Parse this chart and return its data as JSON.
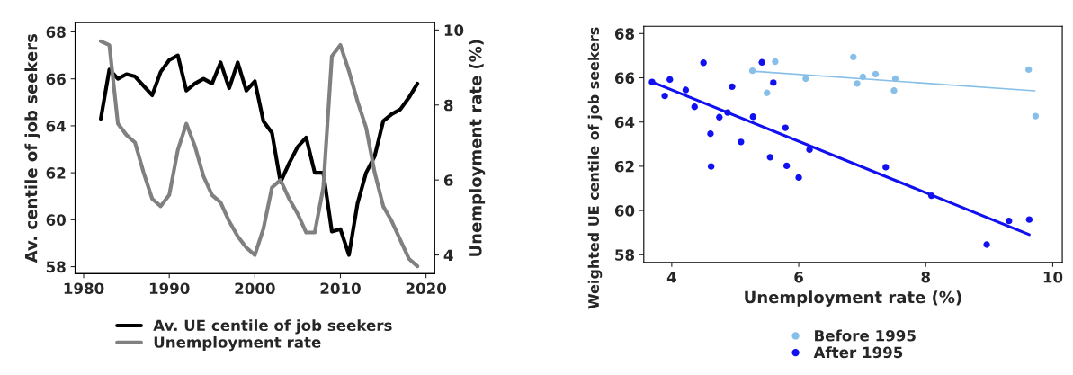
{
  "chart_data": [
    {
      "type": "line",
      "ylabel": "Av. centile of job seekers",
      "y2label": "Unemployment rate (%)",
      "x": [
        1982,
        1983,
        1984,
        1985,
        1986,
        1987,
        1988,
        1989,
        1990,
        1991,
        1992,
        1993,
        1994,
        1995,
        1996,
        1997,
        1998,
        1999,
        2000,
        2001,
        2002,
        2003,
        2004,
        2005,
        2006,
        2007,
        2008,
        2009,
        2010,
        2011,
        2012,
        2013,
        2014,
        2015,
        2016,
        2017,
        2018,
        2019
      ],
      "series": [
        {
          "name": "Av. UE centile of job seekers",
          "color": "#000000",
          "values": [
            64.3,
            66.4,
            66.0,
            66.2,
            66.1,
            65.7,
            65.3,
            66.3,
            66.8,
            67.0,
            65.5,
            65.8,
            66.0,
            65.8,
            66.7,
            65.6,
            66.7,
            65.5,
            65.9,
            64.2,
            63.7,
            61.6,
            62.4,
            63.1,
            63.5,
            62.0,
            62.0,
            59.5,
            59.6,
            58.5,
            60.7,
            62.0,
            62.7,
            64.2,
            64.5,
            64.7,
            65.2,
            65.8
          ]
        },
        {
          "name": "Unemployment rate",
          "color": "#808080",
          "axis": "y2",
          "values": [
            9.7,
            9.6,
            7.5,
            7.2,
            7.0,
            6.2,
            5.5,
            5.3,
            5.6,
            6.8,
            7.5,
            6.9,
            6.1,
            5.6,
            5.4,
            4.9,
            4.5,
            4.2,
            4.0,
            4.7,
            5.8,
            6.0,
            5.5,
            5.1,
            4.6,
            4.6,
            5.8,
            9.3,
            9.6,
            8.9,
            8.1,
            7.4,
            6.2,
            5.3,
            4.9,
            4.4,
            3.9,
            3.7
          ]
        }
      ],
      "xlim": [
        1979,
        2021
      ],
      "xticks": [
        1980,
        1990,
        2000,
        2010,
        2020
      ],
      "ylim": [
        57.7,
        68.4
      ],
      "yticks": [
        58,
        60,
        62,
        64,
        66,
        68
      ],
      "y2lim": [
        3.5,
        10.2
      ],
      "y2ticks": [
        4,
        6,
        8,
        10
      ],
      "grid": false,
      "legend": "bottom"
    },
    {
      "type": "scatter",
      "xlabel": "Unemployment rate (%)",
      "ylabel": "Weighted UE centile of job seekers",
      "series": [
        {
          "name": "Before 1995",
          "color": "#87bfe8",
          "x": [
            5.27,
            5.63,
            5.5,
            6.11,
            6.86,
            6.92,
            7.01,
            7.21,
            7.5,
            7.52,
            9.62,
            9.73
          ],
          "values": [
            66.32,
            66.73,
            65.32,
            65.96,
            66.94,
            65.74,
            66.04,
            66.17,
            65.42,
            65.96,
            66.37,
            64.27
          ]
        },
        {
          "name": "After 1995",
          "color": "#1010f0",
          "x": [
            3.69,
            3.89,
            3.97,
            4.22,
            4.36,
            4.5,
            4.61,
            4.62,
            4.75,
            4.88,
            4.95,
            5.09,
            5.28,
            5.42,
            5.55,
            5.6,
            5.79,
            5.81,
            6.0,
            6.17,
            7.37,
            8.09,
            8.96,
            9.31,
            9.63
          ],
          "values": [
            65.81,
            65.18,
            65.92,
            65.45,
            64.69,
            66.68,
            63.47,
            61.99,
            64.22,
            64.43,
            65.6,
            63.1,
            64.24,
            66.7,
            62.41,
            65.78,
            63.74,
            62.02,
            61.49,
            62.75,
            61.96,
            60.67,
            58.46,
            59.53,
            59.59
          ]
        },
        {
          "type": "line",
          "color": "#87bfe8",
          "x": [
            5.27,
            9.72
          ],
          "values": [
            66.3,
            65.41
          ]
        },
        {
          "type": "line",
          "color": "#1010f0",
          "x": [
            3.69,
            9.63
          ],
          "values": [
            65.81,
            58.91
          ]
        }
      ],
      "xlim": [
        3.56,
        10.15
      ],
      "xticks": [
        4,
        6,
        8,
        10
      ],
      "ylim": [
        57.65,
        68.33
      ],
      "yticks": [
        58,
        60,
        62,
        64,
        66,
        68
      ],
      "grid": false,
      "legend": "bottom"
    }
  ]
}
